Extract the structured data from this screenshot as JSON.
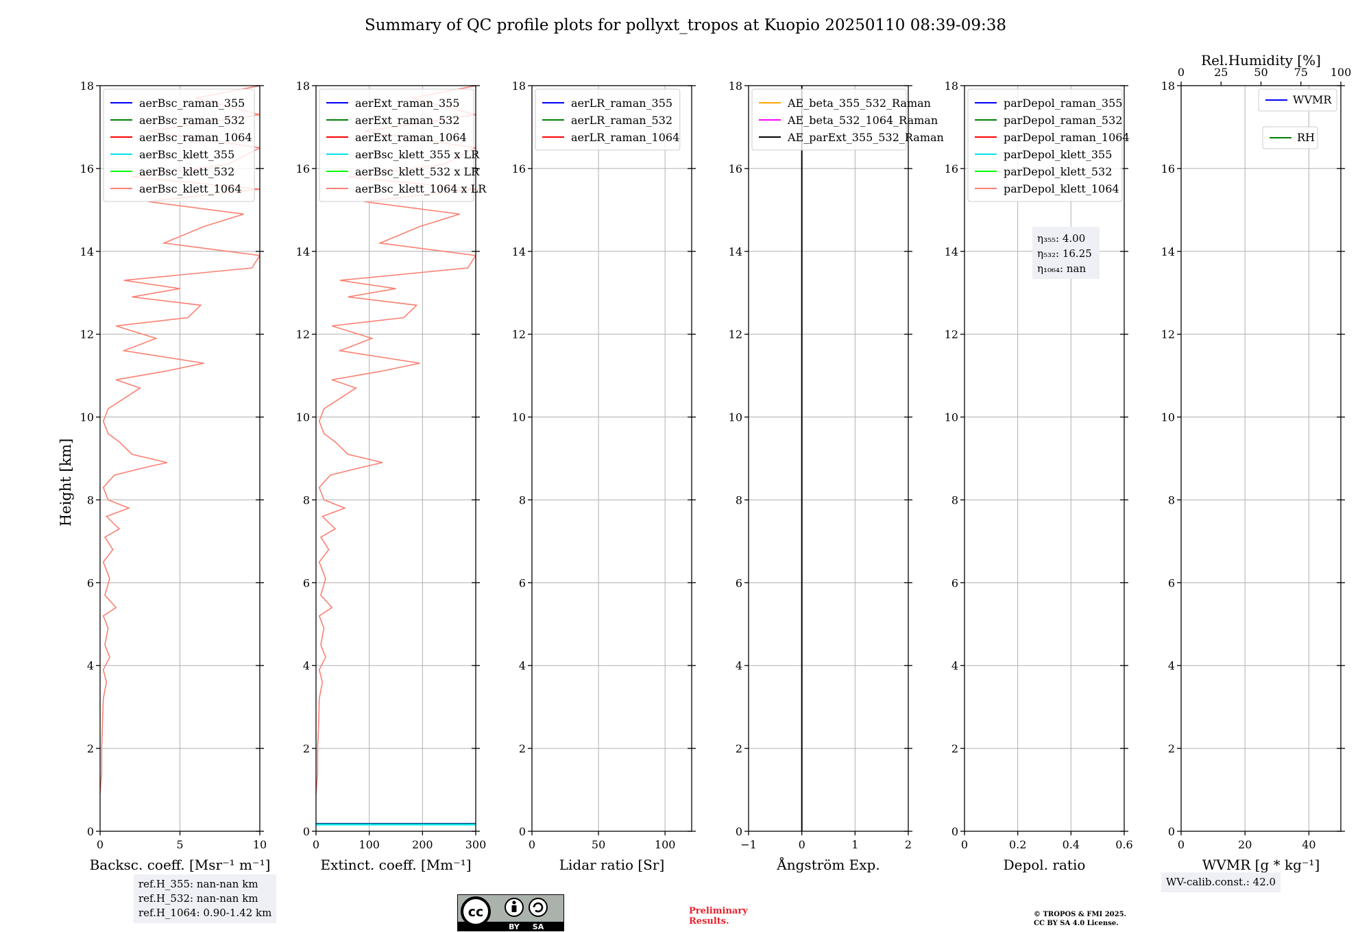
{
  "title": "Summary of QC profile plots for pollyxt_tropos at Kuopio 20250110 08:39-09:38",
  "ylabel": "Height [km]",
  "colors": {
    "salmon": "#fa8072",
    "orange": "#ffa500",
    "magenta": "#ff00ff",
    "cyan": "#00e5ee",
    "lime": "#00ff00",
    "note_bg": "#eef0f5"
  },
  "chart_data": [
    {
      "type": "line",
      "id": "bsc",
      "xlabel": "Backsc. coeff. [Msr⁻¹ m⁻¹]",
      "xlim": [
        0,
        10
      ],
      "xticks": [
        0,
        5,
        10
      ],
      "ylim": [
        0,
        18
      ],
      "yticks": [
        0,
        2,
        4,
        6,
        8,
        10,
        12,
        14,
        16,
        18
      ],
      "grid": true,
      "legend": "top-left",
      "legend_entries": [
        {
          "label": "aerBsc_raman_355",
          "color": "#0000ff"
        },
        {
          "label": "aerBsc_raman_532",
          "color": "#008000"
        },
        {
          "label": "aerBsc_raman_1064",
          "color": "#ff0000"
        },
        {
          "label": "aerBsc_klett_355",
          "color": "#00e5ee"
        },
        {
          "label": "aerBsc_klett_532",
          "color": "#00ff00"
        },
        {
          "label": "aerBsc_klett_1064",
          "color": "#fa8072"
        }
      ],
      "series": [
        {
          "name": "aerBsc_klett_1064",
          "color": "#fa8072",
          "points": [
            [
              0.0,
              0.9
            ],
            [
              0.1,
              1.4
            ],
            [
              0.1,
              2.0
            ],
            [
              0.15,
              2.6
            ],
            [
              0.2,
              3.2
            ],
            [
              0.4,
              3.6
            ],
            [
              0.2,
              3.9
            ],
            [
              0.6,
              4.2
            ],
            [
              0.3,
              4.5
            ],
            [
              0.5,
              4.9
            ],
            [
              0.2,
              5.2
            ],
            [
              1.0,
              5.4
            ],
            [
              0.3,
              5.7
            ],
            [
              0.6,
              6.1
            ],
            [
              0.2,
              6.5
            ],
            [
              0.8,
              6.8
            ],
            [
              0.3,
              7.1
            ],
            [
              1.2,
              7.3
            ],
            [
              0.4,
              7.6
            ],
            [
              1.8,
              7.8
            ],
            [
              0.5,
              8.0
            ],
            [
              0.2,
              8.3
            ],
            [
              0.9,
              8.6
            ],
            [
              3.0,
              8.8
            ],
            [
              4.2,
              8.9
            ],
            [
              2.0,
              9.1
            ],
            [
              1.2,
              9.4
            ],
            [
              0.5,
              9.6
            ],
            [
              0.2,
              9.9
            ],
            [
              0.5,
              10.2
            ],
            [
              1.3,
              10.4
            ],
            [
              2.5,
              10.7
            ],
            [
              1.0,
              10.9
            ],
            [
              4.0,
              11.1
            ],
            [
              6.5,
              11.3
            ],
            [
              1.5,
              11.6
            ],
            [
              3.5,
              11.9
            ],
            [
              1.0,
              12.2
            ],
            [
              5.5,
              12.4
            ],
            [
              6.3,
              12.7
            ],
            [
              2.0,
              12.9
            ],
            [
              5.0,
              13.1
            ],
            [
              1.5,
              13.3
            ],
            [
              9.5,
              13.6
            ],
            [
              10.0,
              13.9
            ],
            [
              4.0,
              14.2
            ],
            [
              6.5,
              14.6
            ],
            [
              9.0,
              14.9
            ],
            [
              3.0,
              15.2
            ],
            [
              10.0,
              15.5
            ],
            [
              2.0,
              15.8
            ],
            [
              8.0,
              16.1
            ],
            [
              10.0,
              16.5
            ],
            [
              3.0,
              16.9
            ],
            [
              10.0,
              17.3
            ],
            [
              6.0,
              17.7
            ],
            [
              10.0,
              18.0
            ]
          ]
        }
      ]
    },
    {
      "type": "line",
      "id": "ext",
      "xlabel": "Extinct. coeff. [Mm⁻¹]",
      "xlim": [
        0,
        300
      ],
      "xticks": [
        0,
        100,
        200,
        300
      ],
      "ylim": [
        0,
        18
      ],
      "yticks": [
        0,
        2,
        4,
        6,
        8,
        10,
        12,
        14,
        16,
        18
      ],
      "grid": true,
      "legend": "top-left",
      "legend_entries": [
        {
          "label": "aerExt_raman_355",
          "color": "#0000ff"
        },
        {
          "label": "aerExt_raman_532",
          "color": "#008000"
        },
        {
          "label": "aerExt_raman_1064",
          "color": "#ff0000"
        },
        {
          "label": "aerBsc_klett_355 x LR",
          "color": "#00e5ee"
        },
        {
          "label": "aerBsc_klett_532 x LR",
          "color": "#00ff00"
        },
        {
          "label": "aerBsc_klett_1064 x LR",
          "color": "#fa8072"
        }
      ],
      "series": [
        {
          "name": "aerBsc_klett_1064 x LR",
          "color": "#fa8072",
          "points": [
            [
              0,
              0.9
            ],
            [
              3,
              1.4
            ],
            [
              3,
              2.0
            ],
            [
              5,
              2.6
            ],
            [
              6,
              3.2
            ],
            [
              12,
              3.6
            ],
            [
              6,
              3.9
            ],
            [
              18,
              4.2
            ],
            [
              9,
              4.5
            ],
            [
              15,
              4.9
            ],
            [
              6,
              5.2
            ],
            [
              30,
              5.4
            ],
            [
              9,
              5.7
            ],
            [
              18,
              6.1
            ],
            [
              6,
              6.5
            ],
            [
              24,
              6.8
            ],
            [
              9,
              7.1
            ],
            [
              36,
              7.3
            ],
            [
              12,
              7.6
            ],
            [
              54,
              7.8
            ],
            [
              15,
              8.0
            ],
            [
              6,
              8.3
            ],
            [
              27,
              8.6
            ],
            [
              90,
              8.8
            ],
            [
              125,
              8.9
            ],
            [
              60,
              9.1
            ],
            [
              36,
              9.4
            ],
            [
              15,
              9.6
            ],
            [
              6,
              9.9
            ],
            [
              15,
              10.2
            ],
            [
              39,
              10.4
            ],
            [
              75,
              10.7
            ],
            [
              30,
              10.9
            ],
            [
              120,
              11.1
            ],
            [
              195,
              11.3
            ],
            [
              45,
              11.6
            ],
            [
              105,
              11.9
            ],
            [
              30,
              12.2
            ],
            [
              165,
              12.4
            ],
            [
              189,
              12.7
            ],
            [
              60,
              12.9
            ],
            [
              150,
              13.1
            ],
            [
              45,
              13.3
            ],
            [
              285,
              13.6
            ],
            [
              300,
              13.9
            ],
            [
              120,
              14.2
            ],
            [
              195,
              14.6
            ],
            [
              270,
              14.9
            ],
            [
              90,
              15.2
            ],
            [
              300,
              15.5
            ],
            [
              60,
              15.8
            ],
            [
              240,
              16.1
            ],
            [
              300,
              16.5
            ],
            [
              90,
              16.9
            ],
            [
              300,
              17.3
            ],
            [
              180,
              17.7
            ],
            [
              300,
              18.0
            ]
          ]
        },
        {
          "name": "aerExt_raman_355",
          "color": "#0000ff",
          "points": [
            [
              0,
              0.18
            ],
            [
              300,
              0.18
            ]
          ]
        },
        {
          "name": "aerExt_raman_532",
          "color": "#008000",
          "points": [
            [
              0,
              0.17
            ],
            [
              300,
              0.17
            ]
          ]
        },
        {
          "name": "aerBsc_klett_355 x LR",
          "color": "#00e5ee",
          "points": [
            [
              0,
              0.16
            ],
            [
              300,
              0.16
            ]
          ]
        }
      ]
    },
    {
      "type": "line",
      "id": "lr",
      "xlabel": "Lidar ratio [Sr]",
      "xlim": [
        0,
        120
      ],
      "xticks": [
        0,
        50,
        100
      ],
      "ylim": [
        0,
        18
      ],
      "yticks": [
        0,
        2,
        4,
        6,
        8,
        10,
        12,
        14,
        16,
        18
      ],
      "grid": true,
      "legend": "top-left",
      "legend_entries": [
        {
          "label": "aerLR_raman_355",
          "color": "#0000ff"
        },
        {
          "label": "aerLR_raman_532",
          "color": "#008000"
        },
        {
          "label": "aerLR_raman_1064",
          "color": "#ff0000"
        }
      ],
      "series": []
    },
    {
      "type": "line",
      "id": "ae",
      "xlabel": "Ångström Exp.",
      "xlim": [
        -1,
        2
      ],
      "xticks": [
        -1,
        0,
        1,
        2
      ],
      "ylim": [
        0,
        18
      ],
      "yticks": [
        0,
        2,
        4,
        6,
        8,
        10,
        12,
        14,
        16,
        18
      ],
      "grid": true,
      "legend": "top-left",
      "legend_entries": [
        {
          "label": "AE_beta_355_532_Raman",
          "color": "#ffa500"
        },
        {
          "label": "AE_beta_532_1064_Raman",
          "color": "#ff00ff"
        },
        {
          "label": "AE_parExt_355_532_Raman",
          "color": "#000000"
        }
      ],
      "series": [
        {
          "name": "zero line",
          "color": "#000000",
          "points": [
            [
              0,
              0
            ],
            [
              0,
              18
            ]
          ]
        }
      ]
    },
    {
      "type": "line",
      "id": "depol",
      "xlabel": "Depol. ratio",
      "xlim": [
        0,
        0.6
      ],
      "xticks": [
        0.0,
        0.2,
        0.4,
        0.6
      ],
      "ylim": [
        0,
        18
      ],
      "yticks": [
        0,
        2,
        4,
        6,
        8,
        10,
        12,
        14,
        16,
        18
      ],
      "grid": true,
      "legend": "top-left",
      "legend_entries": [
        {
          "label": "parDepol_raman_355",
          "color": "#0000ff"
        },
        {
          "label": "parDepol_raman_532",
          "color": "#008000"
        },
        {
          "label": "parDepol_raman_1064",
          "color": "#ff0000"
        },
        {
          "label": "parDepol_klett_355",
          "color": "#00e5ee"
        },
        {
          "label": "parDepol_klett_532",
          "color": "#00ff00"
        },
        {
          "label": "parDepol_klett_1064",
          "color": "#fa8072"
        }
      ],
      "annotation": [
        "η₃₅₅: 4.00",
        "η₅₃₂: 16.25",
        "η₁₀₆₄: nan"
      ],
      "series": []
    },
    {
      "type": "line",
      "id": "wv",
      "xlabel": "WVMR [g * kg⁻¹]",
      "xlim": [
        0,
        50
      ],
      "xticks": [
        0,
        20,
        40
      ],
      "ylim": [
        0,
        18
      ],
      "yticks": [
        0,
        2,
        4,
        6,
        8,
        10,
        12,
        14,
        16,
        18
      ],
      "grid": true,
      "top_xlabel": "Rel.Humidity [%]",
      "top_xlim": [
        0,
        100
      ],
      "top_xticks": [
        0,
        25,
        50,
        75,
        100
      ],
      "legend": "top-right",
      "legend_entries": [
        {
          "label": "WVMR",
          "color": "#0000ff"
        },
        {
          "label": "RH",
          "color": "#008000"
        }
      ],
      "series": []
    }
  ],
  "notes": {
    "ref_heights": "ref.H_355: nan-nan km\nref.H_532: nan-nan km\nref.H_1064: 0.90-1.42 km",
    "wv_calib": "WV-calib.const.: 42.0",
    "preliminary": "Preliminary\nResults.",
    "copyright": "© TROPOS & FMI 2025.\nCC BY SA 4.0 License.",
    "license_badge": {
      "cc": "cc",
      "by": "BY",
      "sa": "SA"
    }
  }
}
